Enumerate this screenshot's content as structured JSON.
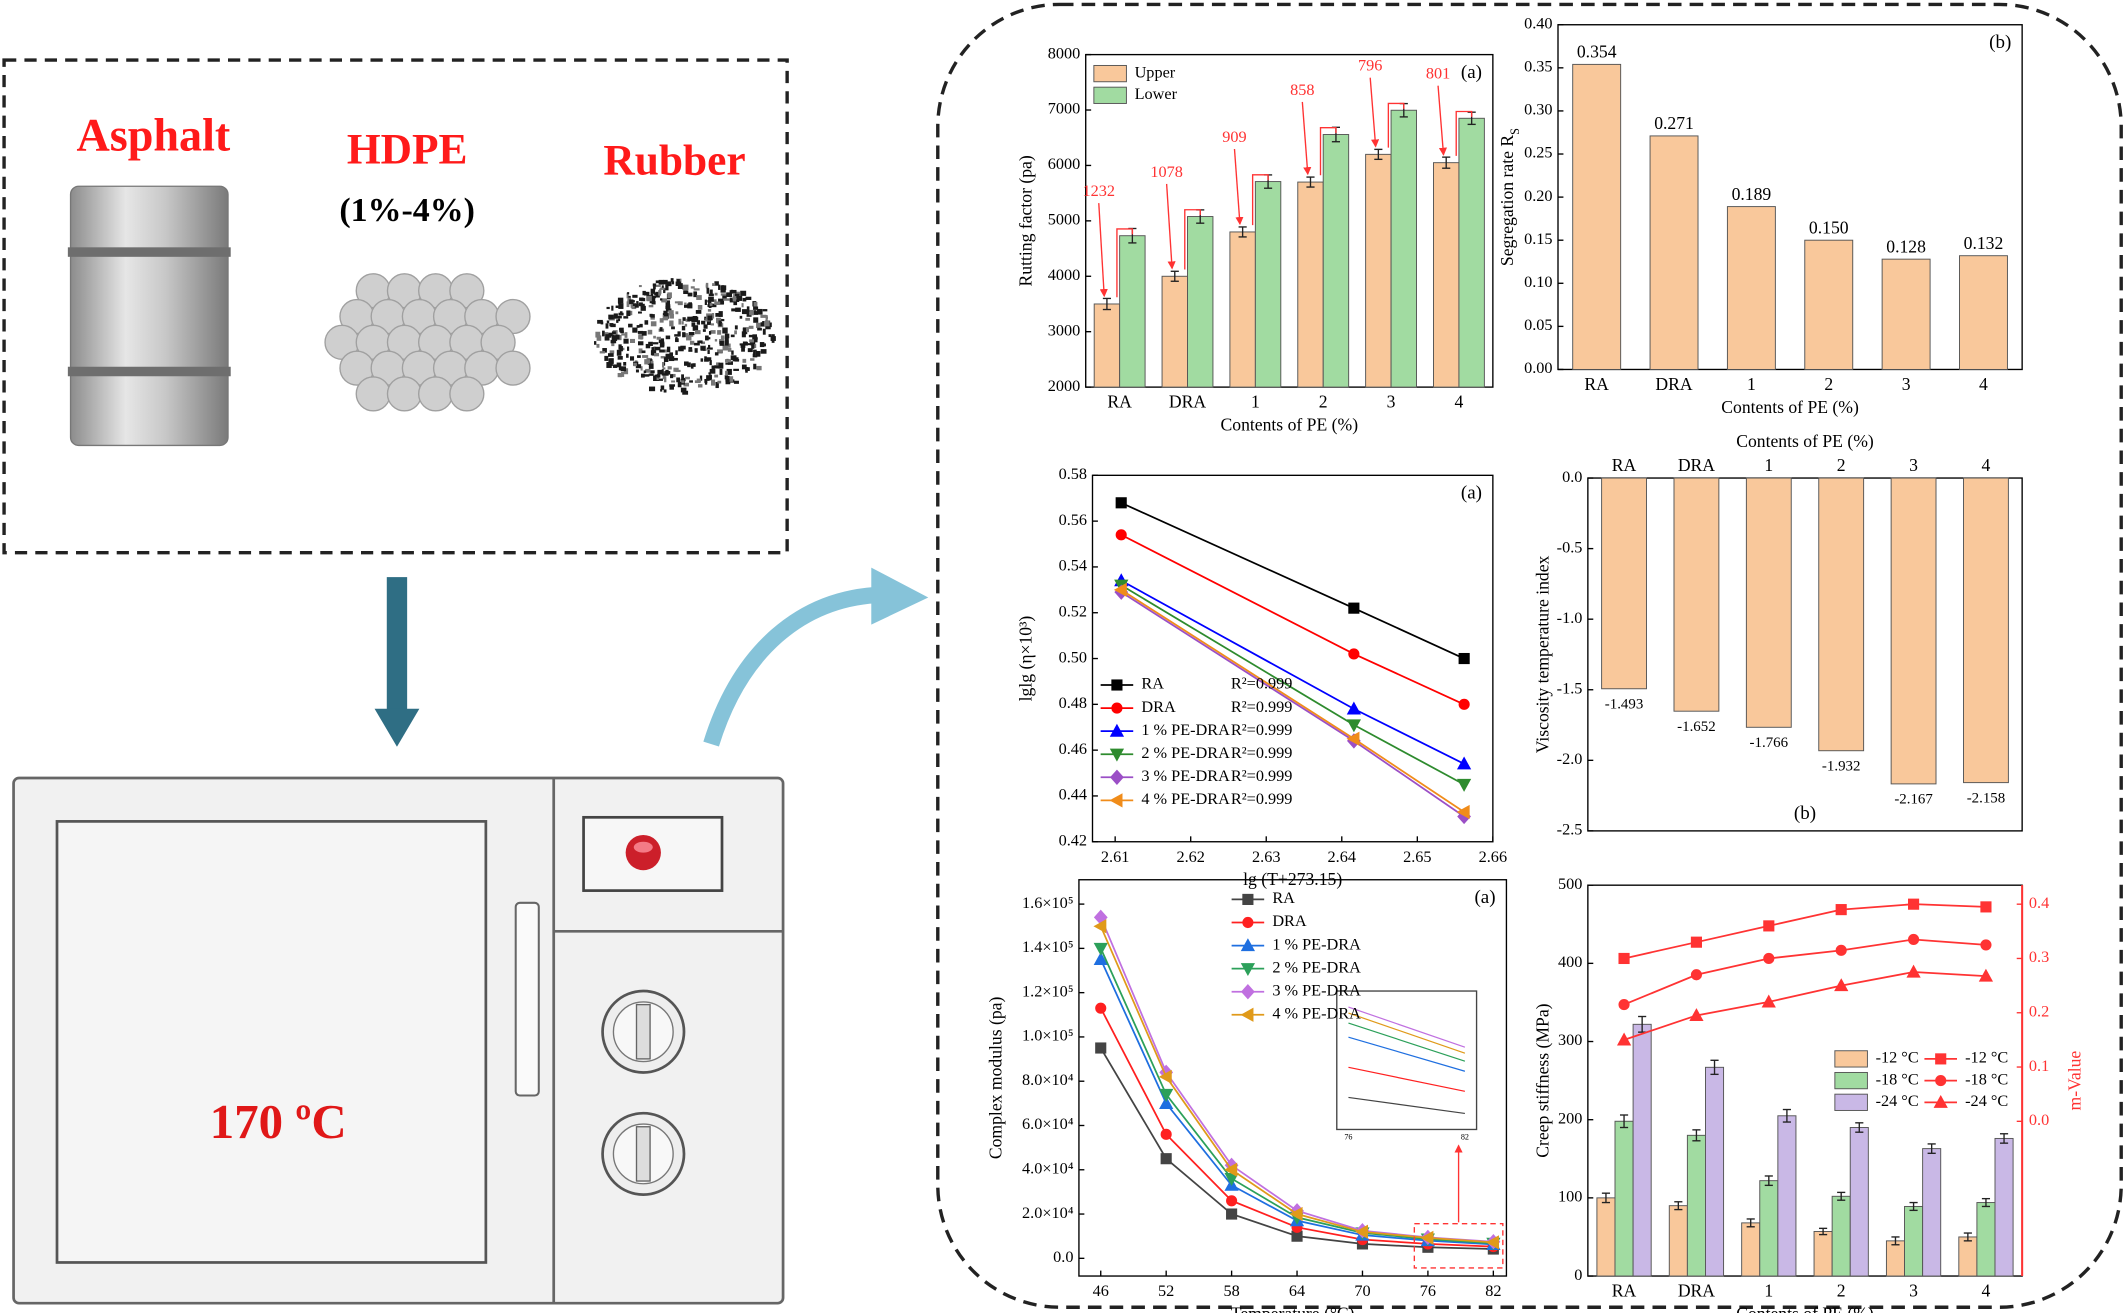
{
  "materials": {
    "asphalt": "Asphalt",
    "hdpe": "HDPE",
    "hdpe_range": "(1%-4%)",
    "rubber": "Rubber"
  },
  "oven_temperature": "170 ºC",
  "chart_data": [
    {
      "type": "bar",
      "categories": [
        "RA",
        "DRA",
        "1",
        "2",
        "3",
        "4"
      ],
      "series": [
        {
          "name": "Upper",
          "color": "#f9c89b",
          "values": [
            3500,
            4000,
            4800,
            5700,
            6200,
            6050
          ],
          "errors": [
            100,
            90,
            90,
            90,
            90,
            100
          ]
        },
        {
          "name": "Lower",
          "color": "#a1dba1",
          "values": [
            4732,
            5078,
            5709,
            6558,
            6996,
            6851
          ],
          "errors": [
            130,
            120,
            120,
            130,
            120,
            110
          ]
        }
      ],
      "difference_labels": [
        1232,
        1078,
        909,
        858,
        796,
        801
      ],
      "difference_color": "#ff3333",
      "ylim": [
        2000,
        8000
      ],
      "yticks": [
        2000,
        3000,
        4000,
        5000,
        6000,
        7000,
        8000
      ],
      "xlabel": "Contents of PE (%)",
      "ylabel": "Rutting factor (pa)",
      "legend": "upper left",
      "panel_label": "(a)",
      "panel_label_position": "upper right"
    },
    {
      "type": "bar",
      "categories": [
        "RA",
        "DRA",
        "1",
        "2",
        "3",
        "4"
      ],
      "values": [
        0.354,
        0.271,
        0.189,
        0.15,
        0.128,
        0.132
      ],
      "value_labels": [
        "0.354",
        "0.271",
        "0.189",
        "0.150",
        "0.128",
        "0.132"
      ],
      "color": "#f9c89b",
      "ylim": [
        0,
        0.4
      ],
      "yticks": [
        {
          "value": 0,
          "label": "0.00"
        },
        0.05,
        {
          "value": 0.1,
          "label": "0.10"
        },
        0.15,
        {
          "value": 0.2,
          "label": "0.20"
        },
        0.25,
        {
          "value": 0.3,
          "label": "0.30"
        },
        0.35,
        {
          "value": 0.4,
          "label": "0.40"
        }
      ],
      "xlabel": "Contents of PE (%)",
      "ylabel": "Segregation rate R",
      "ylabel_subscript": "S",
      "panel_label": "(b)",
      "panel_label_position": "upper right"
    },
    {
      "type": "line",
      "x": [
        2.6108,
        2.6416,
        2.6562
      ],
      "xlim": [
        2.607,
        2.66
      ],
      "xticks": [
        2.61,
        2.62,
        2.63,
        2.64,
        2.65,
        2.66
      ],
      "ylim": [
        0.42,
        0.58
      ],
      "yticks": [
        0.42,
        0.44,
        0.46,
        0.48,
        {
          "value": 0.5,
          "label": "0.50"
        },
        0.52,
        0.54,
        0.56,
        0.58
      ],
      "series": [
        {
          "name": "RA",
          "r2": "R²=0.999",
          "color": "#000000",
          "marker": "square",
          "values": [
            0.568,
            0.522,
            0.5
          ]
        },
        {
          "name": "DRA",
          "r2": "R²=0.999",
          "color": "#ff0000",
          "marker": "circle",
          "values": [
            0.554,
            0.502,
            0.48
          ]
        },
        {
          "name": "1 % PE-DRA",
          "r2": "R²=0.999",
          "color": "#0000ff",
          "marker": "triangle-up",
          "values": [
            0.534,
            0.478,
            0.454
          ]
        },
        {
          "name": "2 % PE-DRA",
          "r2": "R²=0.999",
          "color": "#2e8b2e",
          "marker": "triangle-down",
          "values": [
            0.532,
            0.471,
            0.445
          ]
        },
        {
          "name": "3 % PE-DRA",
          "r2": "R²=0.999",
          "color": "#9b4fc6",
          "marker": "diamond",
          "values": [
            0.529,
            0.464,
            0.431
          ]
        },
        {
          "name": "4 % PE-DRA",
          "r2": "R²=0.999",
          "color": "#f08c1a",
          "marker": "triangle-left",
          "values": [
            0.53,
            0.465,
            0.433
          ]
        }
      ],
      "xlabel": "lg (T+273.15)",
      "ylabel": "lglg (η×10³)",
      "legend": "lower left",
      "panel_label": "(a)",
      "panel_label_position": "upper right"
    },
    {
      "type": "bar",
      "categories": [
        "RA",
        "DRA",
        "1",
        "2",
        "3",
        "4"
      ],
      "values": [
        -1.493,
        -1.652,
        -1.766,
        -1.932,
        -2.167,
        -2.158
      ],
      "color": "#f9c89b",
      "data_labels": true,
      "ylim": [
        -2.5,
        0
      ],
      "yticks": [
        -2.5,
        {
          "value": -2,
          "label": "-2.0"
        },
        -1.5,
        {
          "value": -1,
          "label": "-1.0"
        },
        -0.5,
        {
          "value": 0,
          "label": "0.0"
        }
      ],
      "xaxis": "top",
      "xlabel": "Contents of PE (%)",
      "ylabel": "Viscosity temperature index",
      "panel_label": "(b)",
      "panel_label_position": "lower center"
    },
    {
      "type": "line",
      "x": [
        46,
        52,
        58,
        64,
        70,
        76,
        82
      ],
      "xlim": [
        44,
        83.2
      ],
      "xticks": [
        46,
        52,
        58,
        64,
        70,
        76,
        82
      ],
      "ylim": [
        -8000,
        171000
      ],
      "yticks": [
        {
          "value": 0,
          "label": "0.0"
        },
        {
          "value": 20000,
          "label": "2.0×10⁴"
        },
        {
          "value": 40000,
          "label": "4.0×10⁴"
        },
        {
          "value": 60000,
          "label": "6.0×10⁴"
        },
        {
          "value": 80000,
          "label": "8.0×10⁴"
        },
        {
          "value": 100000,
          "label": "1.0×10⁵"
        },
        {
          "value": 120000,
          "label": "1.2×10⁵"
        },
        {
          "value": 140000,
          "label": "1.4×10⁵"
        },
        {
          "value": 160000,
          "label": "1.6×10⁵"
        }
      ],
      "series": [
        {
          "name": "RA",
          "color": "#444444",
          "marker": "square",
          "values": [
            95000,
            45000,
            20000,
            10000,
            6500,
            5000,
            4200
          ]
        },
        {
          "name": "DRA",
          "color": "#ff2020",
          "marker": "circle",
          "values": [
            113000,
            56000,
            26000,
            14000,
            8500,
            6500,
            5300
          ]
        },
        {
          "name": "1 % PE-DRA",
          "color": "#1f6fe0",
          "marker": "triangle-up",
          "values": [
            135000,
            70000,
            33000,
            17000,
            10500,
            8000,
            6300
          ]
        },
        {
          "name": "2 % PE-DRA",
          "color": "#2ca05a",
          "marker": "triangle-down",
          "values": [
            140000,
            74000,
            36000,
            18500,
            11500,
            8700,
            6800
          ]
        },
        {
          "name": "3 % PE-DRA",
          "color": "#c070e0",
          "marker": "diamond",
          "values": [
            154000,
            84000,
            42000,
            21500,
            12500,
            9500,
            7500
          ]
        },
        {
          "name": "4 % PE-DRA",
          "color": "#e09a1a",
          "marker": "triangle-left",
          "values": [
            150000,
            82000,
            40000,
            20000,
            12000,
            9200,
            7200
          ]
        }
      ],
      "inset_xticks": [
        76,
        82
      ],
      "xlabel": "Temperature (°C)",
      "ylabel": "Complex modulus (pa)",
      "legend": "upper center",
      "panel_label": "(a)",
      "panel_label_position": "upper right"
    },
    {
      "type": "bar",
      "categories": [
        "RA",
        "DRA",
        "1",
        "2",
        "3",
        "4"
      ],
      "ylim": [
        0,
        500
      ],
      "yticks": [
        0,
        100,
        200,
        300,
        400,
        500
      ],
      "y2lim": [
        -0.285,
        0.435
      ],
      "y2ticks": [
        {
          "value": 0,
          "label": "0.0"
        },
        0.1,
        0.2,
        0.3,
        0.4
      ],
      "y2color": "#ff3333",
      "series": [
        {
          "name": "-12 °C",
          "color": "#f9c89b",
          "values": [
            100,
            90,
            68,
            57,
            45,
            50
          ],
          "errors": [
            6,
            5,
            5,
            4,
            5,
            5
          ]
        },
        {
          "name": "-18 °C",
          "color": "#a1dba1",
          "values": [
            198,
            180,
            122,
            102,
            89,
            94
          ],
          "errors": [
            8,
            7,
            6,
            5,
            5,
            5
          ]
        },
        {
          "name": "-24 °C",
          "color": "#c9b8e6",
          "values": [
            322,
            267,
            205,
            190,
            163,
            176
          ],
          "errors": [
            10,
            9,
            8,
            6,
            6,
            6
          ]
        },
        {
          "name": "-12 °C",
          "type": "line",
          "axis": "y2",
          "color": "#ff3333",
          "marker": "square",
          "values": [
            0.3,
            0.33,
            0.36,
            0.39,
            0.4,
            0.395
          ]
        },
        {
          "name": "-18 °C",
          "type": "line",
          "axis": "y2",
          "color": "#ff3333",
          "marker": "circle",
          "values": [
            0.215,
            0.27,
            0.3,
            0.315,
            0.335,
            0.325
          ]
        },
        {
          "name": "-24 °C",
          "type": "line",
          "axis": "y2",
          "color": "#ff3333",
          "marker": "triangle-up",
          "values": [
            0.15,
            0.195,
            0.22,
            0.25,
            0.275,
            0.2675
          ]
        }
      ],
      "xlabel": "Contents of PE (%)",
      "ylabel": "Creep stiffness (MPa)",
      "y2label": "m-Value",
      "legend": "center right"
    }
  ]
}
